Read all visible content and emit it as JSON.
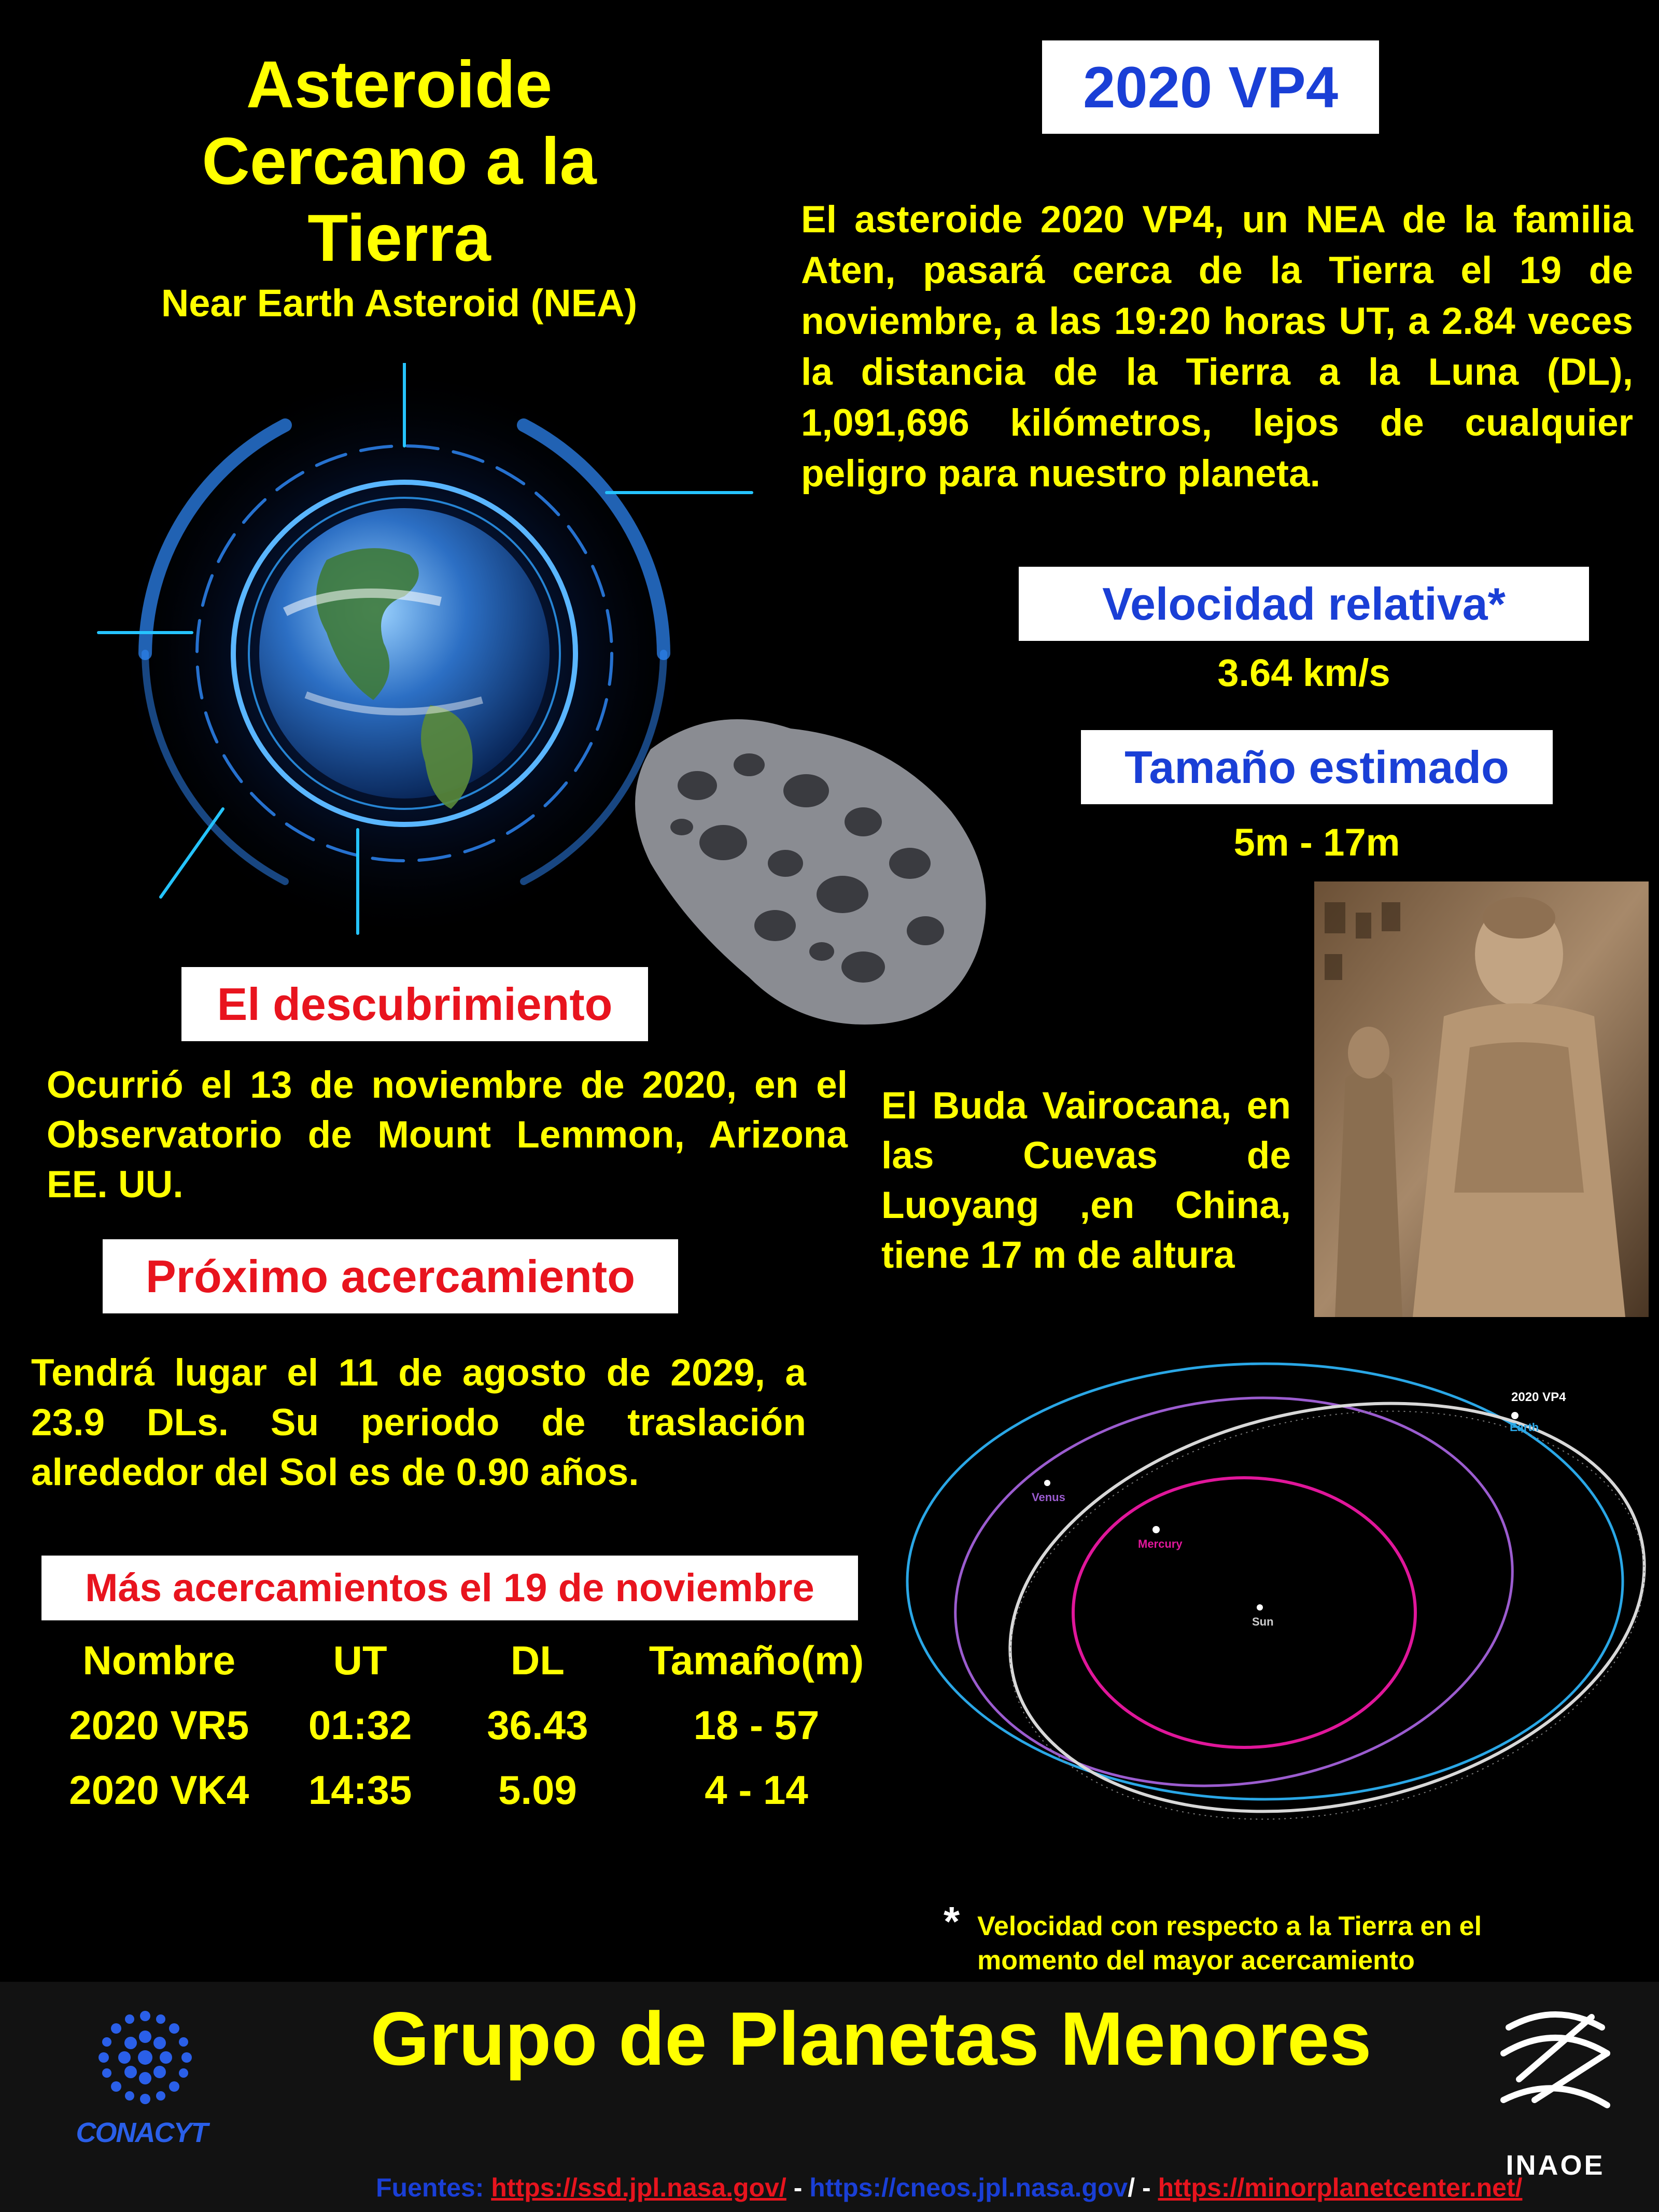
{
  "title": {
    "lines": [
      "Asteroide",
      "Cercano a la",
      "Tierra"
    ],
    "subtitle": "Near Earth Asteroid (NEA)"
  },
  "asteroid_name": "2020 VP4",
  "intro": "El  asteroide 2020 VP4, un NEA de  la familia Aten, pasará cerca de la Tierra el 19 de noviembre, a las 19:20 horas UT, a 2.84 veces la distancia de la Tierra a la Luna (DL), 1,091,696 kilómetros, lejos de cualquier peligro para nuestro planeta.",
  "velocity": {
    "heading": "Velocidad relativa*",
    "value": "3.64 km/s"
  },
  "size": {
    "heading": "Tamaño estimado",
    "value": "5m - 17m"
  },
  "buddha": {
    "text": "El Buda Vairocana, en las Cuevas de Luoyang ,en China, tiene 17 m de altura"
  },
  "discovery": {
    "heading": "El descubrimiento",
    "text": "Ocurrió el 13 de noviembre de 2020, en el Observatorio de Mount Lemmon, Arizona EE. UU."
  },
  "next_approach": {
    "heading": "Próximo acercamiento",
    "text": "Tendrá lugar el 11 de agosto de 2029, a 23.9 DLs. Su periodo de traslación alrededor del Sol es de 0.90  años."
  },
  "more_approaches": {
    "heading": "Más acercamientos el 19 de noviembre",
    "columns": [
      "Nombre",
      "UT",
      "DL",
      "Tamaño(m)"
    ],
    "rows": [
      [
        "2020 VR5",
        "01:32",
        "36.43",
        "18 - 57"
      ],
      [
        "2020 VK4",
        "14:35",
        "5.09",
        "4 - 14"
      ]
    ]
  },
  "orbit_diagram": {
    "labels": {
      "asteroid": "2020 VP4",
      "earth": "Earth",
      "venus": "Venus",
      "mercury": "Mercury",
      "sun": "Sun"
    },
    "colors": {
      "earth": "#2aa7e6",
      "venus": "#9b5ccf",
      "mercury": "#e0169a",
      "asteroid": "#d8d8d8"
    }
  },
  "footnote": {
    "star": "*",
    "text": "Velocidad con respecto a la Tierra en el momento del mayor acercamiento"
  },
  "footer": {
    "group": "Grupo de Planetas Menores",
    "conacyt": "CONACYT",
    "inaoe": "INAOE",
    "sources_label": "Fuentes:",
    "source_1": "https://ssd.jpl.nasa.gov/",
    "source_2": "https://cneos.jpl.nasa.gov",
    "source_2_tail": "/",
    "source_3": "https://minorplanetcenter.net/",
    "sep": " - "
  },
  "colors": {
    "background": "#000000",
    "accent_yellow": "#ffff00",
    "heading_blue": "#1a3fd6",
    "heading_red": "#e8141e"
  },
  "icons": [
    "earth-hud-image",
    "asteroid-image",
    "buddha-photo",
    "conacyt-logo",
    "inaoe-logo"
  ]
}
